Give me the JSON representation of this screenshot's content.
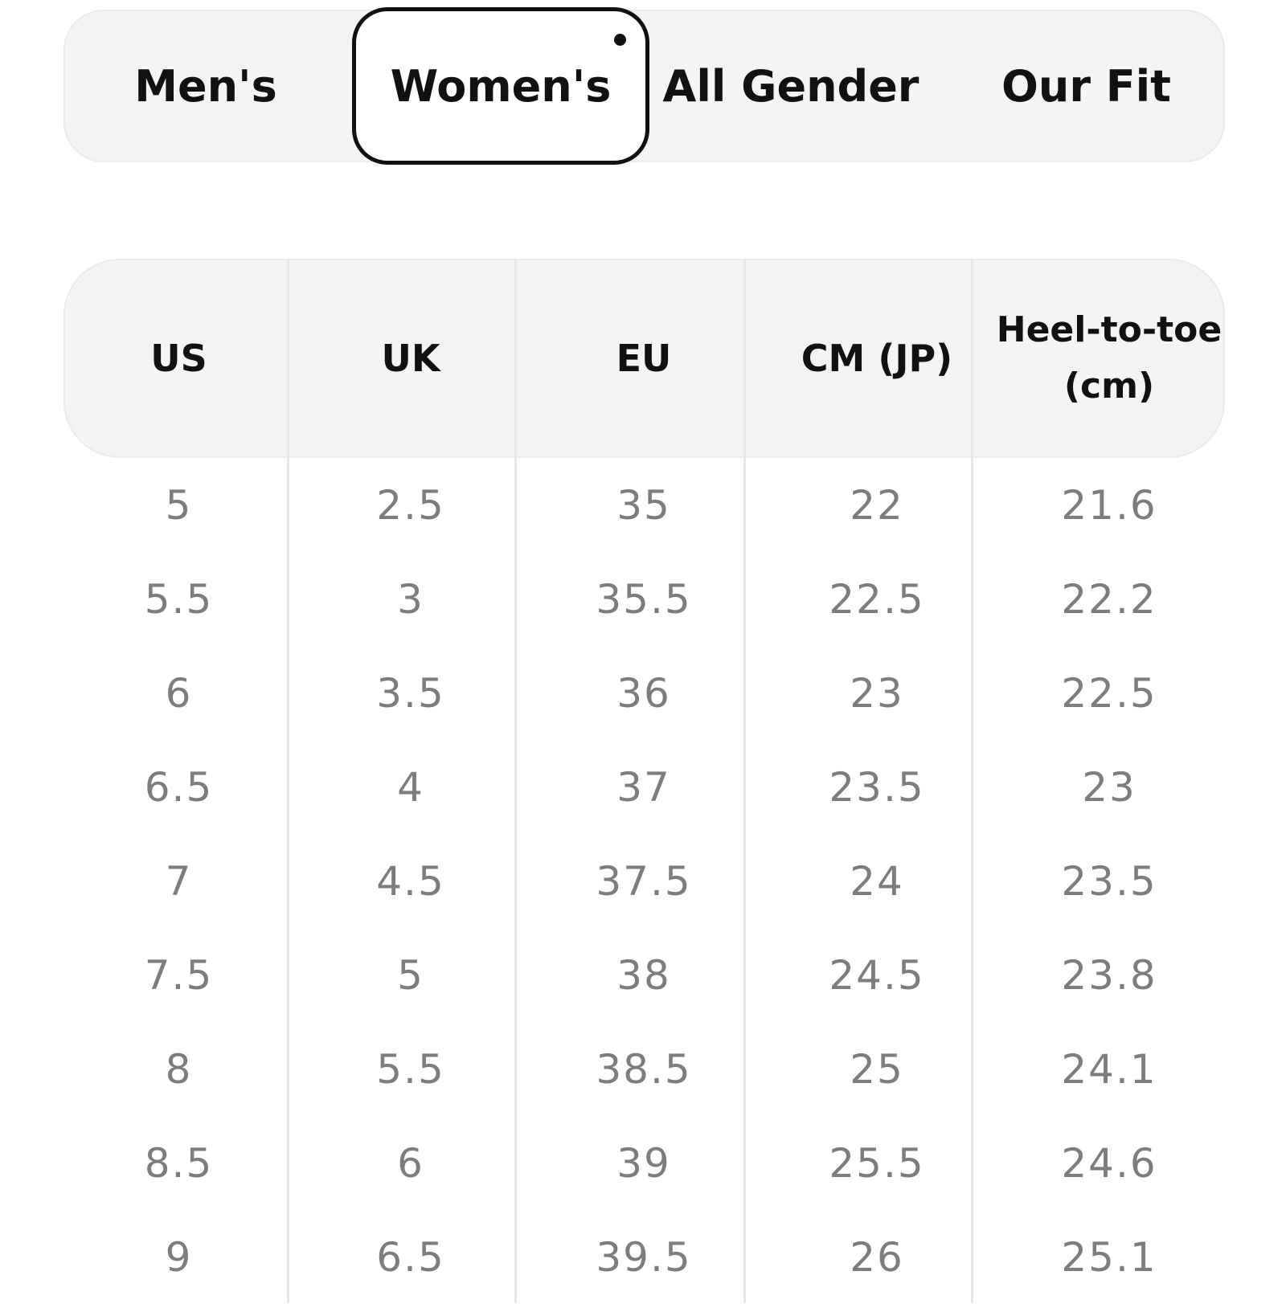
{
  "tabs": [
    {
      "label": "Men's",
      "selected": false
    },
    {
      "label": "Women's",
      "selected": true
    },
    {
      "label": "All Gender",
      "selected": false
    },
    {
      "label": "Our Fit",
      "selected": false
    }
  ],
  "table": {
    "headers": [
      "US",
      "UK",
      "EU",
      "CM (JP)",
      "Heel-to-toe\n(cm)"
    ],
    "rows": [
      [
        "5",
        "2.5",
        "35",
        "22",
        "21.6"
      ],
      [
        "5.5",
        "3",
        "35.5",
        "22.5",
        "22.2"
      ],
      [
        "6",
        "3.5",
        "36",
        "23",
        "22.5"
      ],
      [
        "6.5",
        "4",
        "37",
        "23.5",
        "23"
      ],
      [
        "7",
        "4.5",
        "37.5",
        "24",
        "23.5"
      ],
      [
        "7.5",
        "5",
        "38",
        "24.5",
        "23.8"
      ],
      [
        "8",
        "5.5",
        "38.5",
        "25",
        "24.1"
      ],
      [
        "8.5",
        "6",
        "39",
        "25.5",
        "24.6"
      ],
      [
        "9",
        "6.5",
        "39.5",
        "26",
        "25.1"
      ]
    ]
  },
  "colors": {
    "background": "#ffffff",
    "panel": "#f4f4f4",
    "panel_border": "#ebebeb",
    "selected_border": "#111111",
    "header_text": "#111111",
    "value_text": "#7d7d7d"
  }
}
